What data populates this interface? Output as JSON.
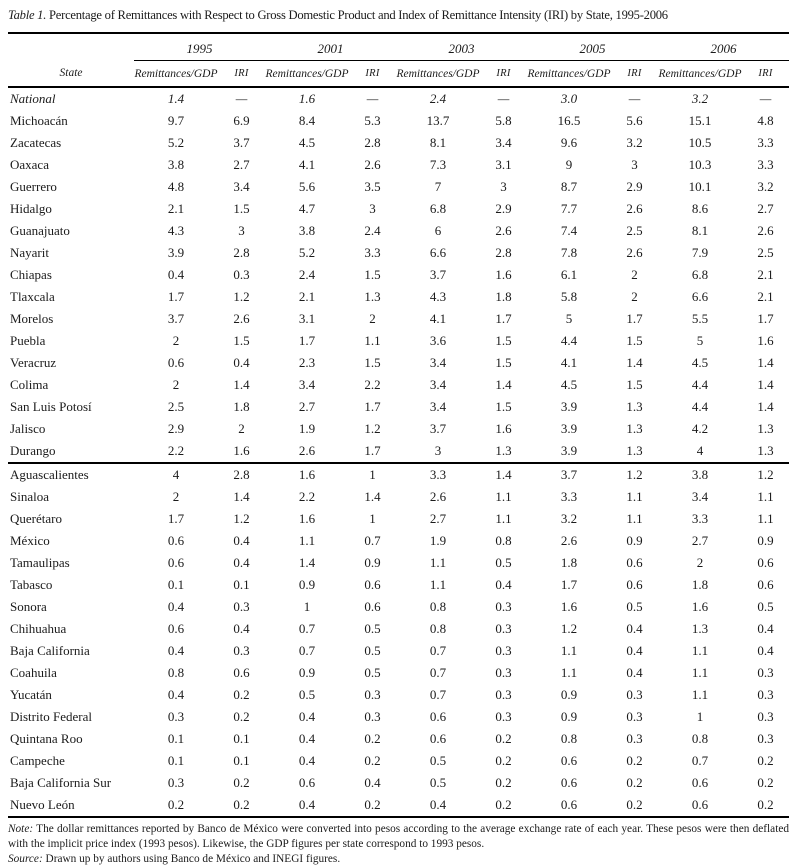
{
  "table": {
    "title_label": "Table 1.",
    "title_text": "Percentage of Remittances with Respect to Gross Domestic Product and Index of Remittance Intensity (IRI) by State, 1995-2006",
    "years": [
      "1995",
      "2001",
      "2003",
      "2005",
      "2006"
    ],
    "col_state": "State",
    "col_rem": "Remittances/GDP",
    "col_iri": "IRI",
    "rows": [
      {
        "state": "National",
        "italic": true,
        "values": [
          "1.4",
          "—",
          "1.6",
          "—",
          "2.4",
          "—",
          "3.0",
          "—",
          "3.2",
          "—"
        ]
      },
      {
        "state": "Michoacán",
        "values": [
          "9.7",
          "6.9",
          "8.4",
          "5.3",
          "13.7",
          "5.8",
          "16.5",
          "5.6",
          "15.1",
          "4.8"
        ]
      },
      {
        "state": "Zacatecas",
        "values": [
          "5.2",
          "3.7",
          "4.5",
          "2.8",
          "8.1",
          "3.4",
          "9.6",
          "3.2",
          "10.5",
          "3.3"
        ]
      },
      {
        "state": "Oaxaca",
        "values": [
          "3.8",
          "2.7",
          "4.1",
          "2.6",
          "7.3",
          "3.1",
          "9",
          "3",
          "10.3",
          "3.3"
        ]
      },
      {
        "state": "Guerrero",
        "values": [
          "4.8",
          "3.4",
          "5.6",
          "3.5",
          "7",
          "3",
          "8.7",
          "2.9",
          "10.1",
          "3.2"
        ]
      },
      {
        "state": "Hidalgo",
        "values": [
          "2.1",
          "1.5",
          "4.7",
          "3",
          "6.8",
          "2.9",
          "7.7",
          "2.6",
          "8.6",
          "2.7"
        ]
      },
      {
        "state": "Guanajuato",
        "values": [
          "4.3",
          "3",
          "3.8",
          "2.4",
          "6",
          "2.6",
          "7.4",
          "2.5",
          "8.1",
          "2.6"
        ]
      },
      {
        "state": "Nayarit",
        "values": [
          "3.9",
          "2.8",
          "5.2",
          "3.3",
          "6.6",
          "2.8",
          "7.8",
          "2.6",
          "7.9",
          "2.5"
        ]
      },
      {
        "state": "Chiapas",
        "values": [
          "0.4",
          "0.3",
          "2.4",
          "1.5",
          "3.7",
          "1.6",
          "6.1",
          "2",
          "6.8",
          "2.1"
        ]
      },
      {
        "state": "Tlaxcala",
        "values": [
          "1.7",
          "1.2",
          "2.1",
          "1.3",
          "4.3",
          "1.8",
          "5.8",
          "2",
          "6.6",
          "2.1"
        ]
      },
      {
        "state": "Morelos",
        "values": [
          "3.7",
          "2.6",
          "3.1",
          "2",
          "4.1",
          "1.7",
          "5",
          "1.7",
          "5.5",
          "1.7"
        ]
      },
      {
        "state": "Puebla",
        "values": [
          "2",
          "1.5",
          "1.7",
          "1.1",
          "3.6",
          "1.5",
          "4.4",
          "1.5",
          "5",
          "1.6"
        ]
      },
      {
        "state": "Veracruz",
        "values": [
          "0.6",
          "0.4",
          "2.3",
          "1.5",
          "3.4",
          "1.5",
          "4.1",
          "1.4",
          "4.5",
          "1.4"
        ]
      },
      {
        "state": "Colima",
        "values": [
          "2",
          "1.4",
          "3.4",
          "2.2",
          "3.4",
          "1.4",
          "4.5",
          "1.5",
          "4.4",
          "1.4"
        ]
      },
      {
        "state": "San Luis Potosí",
        "values": [
          "2.5",
          "1.8",
          "2.7",
          "1.7",
          "3.4",
          "1.5",
          "3.9",
          "1.3",
          "4.4",
          "1.4"
        ]
      },
      {
        "state": "Jalisco",
        "values": [
          "2.9",
          "2",
          "1.9",
          "1.2",
          "3.7",
          "1.6",
          "3.9",
          "1.3",
          "4.2",
          "1.3"
        ]
      },
      {
        "state": "Durango",
        "rule_after": true,
        "values": [
          "2.2",
          "1.6",
          "2.6",
          "1.7",
          "3",
          "1.3",
          "3.9",
          "1.3",
          "4",
          "1.3"
        ]
      },
      {
        "state": "Aguascalientes",
        "values": [
          "4",
          "2.8",
          "1.6",
          "1",
          "3.3",
          "1.4",
          "3.7",
          "1.2",
          "3.8",
          "1.2"
        ]
      },
      {
        "state": "Sinaloa",
        "values": [
          "2",
          "1.4",
          "2.2",
          "1.4",
          "2.6",
          "1.1",
          "3.3",
          "1.1",
          "3.4",
          "1.1"
        ]
      },
      {
        "state": "Querétaro",
        "values": [
          "1.7",
          "1.2",
          "1.6",
          "1",
          "2.7",
          "1.1",
          "3.2",
          "1.1",
          "3.3",
          "1.1"
        ]
      },
      {
        "state": "México",
        "values": [
          "0.6",
          "0.4",
          "1.1",
          "0.7",
          "1.9",
          "0.8",
          "2.6",
          "0.9",
          "2.7",
          "0.9"
        ]
      },
      {
        "state": "Tamaulipas",
        "values": [
          "0.6",
          "0.4",
          "1.4",
          "0.9",
          "1.1",
          "0.5",
          "1.8",
          "0.6",
          "2",
          "0.6"
        ]
      },
      {
        "state": "Tabasco",
        "values": [
          "0.1",
          "0.1",
          "0.9",
          "0.6",
          "1.1",
          "0.4",
          "1.7",
          "0.6",
          "1.8",
          "0.6"
        ]
      },
      {
        "state": "Sonora",
        "values": [
          "0.4",
          "0.3",
          "1",
          "0.6",
          "0.8",
          "0.3",
          "1.6",
          "0.5",
          "1.6",
          "0.5"
        ]
      },
      {
        "state": "Chihuahua",
        "values": [
          "0.6",
          "0.4",
          "0.7",
          "0.5",
          "0.8",
          "0.3",
          "1.2",
          "0.4",
          "1.3",
          "0.4"
        ]
      },
      {
        "state": "Baja California",
        "values": [
          "0.4",
          "0.3",
          "0.7",
          "0.5",
          "0.7",
          "0.3",
          "1.1",
          "0.4",
          "1.1",
          "0.4"
        ]
      },
      {
        "state": "Coahuila",
        "values": [
          "0.8",
          "0.6",
          "0.9",
          "0.5",
          "0.7",
          "0.3",
          "1.1",
          "0.4",
          "1.1",
          "0.3"
        ]
      },
      {
        "state": "Yucatán",
        "values": [
          "0.4",
          "0.2",
          "0.5",
          "0.3",
          "0.7",
          "0.3",
          "0.9",
          "0.3",
          "1.1",
          "0.3"
        ]
      },
      {
        "state": "Distrito Federal",
        "values": [
          "0.3",
          "0.2",
          "0.4",
          "0.3",
          "0.6",
          "0.3",
          "0.9",
          "0.3",
          "1",
          "0.3"
        ]
      },
      {
        "state": "Quintana Roo",
        "values": [
          "0.1",
          "0.1",
          "0.4",
          "0.2",
          "0.6",
          "0.2",
          "0.8",
          "0.3",
          "0.8",
          "0.3"
        ]
      },
      {
        "state": "Campeche",
        "values": [
          "0.1",
          "0.1",
          "0.4",
          "0.2",
          "0.5",
          "0.2",
          "0.6",
          "0.2",
          "0.7",
          "0.2"
        ]
      },
      {
        "state": "Baja California Sur",
        "values": [
          "0.3",
          "0.2",
          "0.6",
          "0.4",
          "0.5",
          "0.2",
          "0.6",
          "0.2",
          "0.6",
          "0.2"
        ]
      },
      {
        "state": "Nuevo León",
        "values": [
          "0.2",
          "0.2",
          "0.4",
          "0.2",
          "0.4",
          "0.2",
          "0.6",
          "0.2",
          "0.6",
          "0.2"
        ]
      }
    ],
    "note_label": "Note:",
    "note_text": "The dollar remittances reported by Banco de México were converted into pesos according to the average exchange rate of each year. These pesos were then deflated with the implicit price index (1993 pesos). Likewise, the GDP figures per state correspond to 1993 pesos.",
    "source_label": "Source:",
    "source_text": "Drawn up by authors using Banco de México and INEGI figures."
  }
}
